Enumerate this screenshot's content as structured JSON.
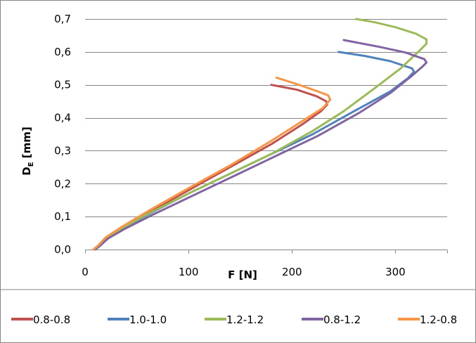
{
  "chart_data": {
    "type": "line",
    "xlabel": "F [N]",
    "ylabel": {
      "main": "D",
      "sub": "E",
      "unit": " [mm]"
    },
    "xlim": [
      0,
      350
    ],
    "ylim": [
      0,
      0.7
    ],
    "x_ticks": [
      {
        "value": 0,
        "label": "0"
      },
      {
        "value": 100,
        "label": "100"
      },
      {
        "value": 200,
        "label": "200"
      },
      {
        "value": 300,
        "label": "300"
      }
    ],
    "y_ticks": [
      {
        "value": 0.0,
        "label": "0,0"
      },
      {
        "value": 0.1,
        "label": "0,1"
      },
      {
        "value": 0.2,
        "label": "0,2"
      },
      {
        "value": 0.3,
        "label": "0,3"
      },
      {
        "value": 0.4,
        "label": "0,4"
      },
      {
        "value": 0.5,
        "label": "0,5"
      },
      {
        "value": 0.6,
        "label": "0,6"
      },
      {
        "value": 0.7,
        "label": "0,7"
      }
    ],
    "grid": "horizontal",
    "legend_position": "bottom",
    "series": [
      {
        "name": "0.8-0.8",
        "color": "#c0504d",
        "points": [
          [
            8,
            0
          ],
          [
            12,
            0.01
          ],
          [
            20,
            0.035
          ],
          [
            35,
            0.065
          ],
          [
            60,
            0.11
          ],
          [
            100,
            0.18
          ],
          [
            140,
            0.25
          ],
          [
            180,
            0.32
          ],
          [
            210,
            0.38
          ],
          [
            228,
            0.42
          ],
          [
            234,
            0.44
          ],
          [
            233,
            0.45
          ],
          [
            224,
            0.465
          ],
          [
            205,
            0.485
          ],
          [
            180,
            0.5
          ]
        ]
      },
      {
        "name": "1.0-1.0",
        "color": "#4f81bd",
        "points": [
          [
            8,
            0
          ],
          [
            12,
            0.01
          ],
          [
            20,
            0.033
          ],
          [
            35,
            0.062
          ],
          [
            60,
            0.105
          ],
          [
            100,
            0.17
          ],
          [
            140,
            0.23
          ],
          [
            180,
            0.29
          ],
          [
            220,
            0.35
          ],
          [
            260,
            0.42
          ],
          [
            295,
            0.48
          ],
          [
            312,
            0.52
          ],
          [
            318,
            0.54
          ],
          [
            316,
            0.55
          ],
          [
            295,
            0.572
          ],
          [
            270,
            0.588
          ],
          [
            245,
            0.6
          ]
        ]
      },
      {
        "name": "1.2-1.2",
        "color": "#9bbb59",
        "points": [
          [
            8,
            0
          ],
          [
            12,
            0.01
          ],
          [
            20,
            0.034
          ],
          [
            35,
            0.063
          ],
          [
            60,
            0.107
          ],
          [
            100,
            0.17
          ],
          [
            140,
            0.23
          ],
          [
            180,
            0.29
          ],
          [
            220,
            0.36
          ],
          [
            250,
            0.42
          ],
          [
            280,
            0.49
          ],
          [
            305,
            0.55
          ],
          [
            322,
            0.6
          ],
          [
            330,
            0.625
          ],
          [
            330,
            0.638
          ],
          [
            320,
            0.655
          ],
          [
            300,
            0.675
          ],
          [
            280,
            0.69
          ],
          [
            262,
            0.7
          ]
        ]
      },
      {
        "name": "0.8-1.2",
        "color": "#8064a2",
        "points": [
          [
            10,
            0
          ],
          [
            14,
            0.01
          ],
          [
            22,
            0.033
          ],
          [
            38,
            0.062
          ],
          [
            65,
            0.105
          ],
          [
            105,
            0.165
          ],
          [
            145,
            0.225
          ],
          [
            185,
            0.285
          ],
          [
            225,
            0.345
          ],
          [
            265,
            0.415
          ],
          [
            295,
            0.475
          ],
          [
            315,
            0.525
          ],
          [
            326,
            0.555
          ],
          [
            330,
            0.568
          ],
          [
            328,
            0.578
          ],
          [
            310,
            0.598
          ],
          [
            285,
            0.615
          ],
          [
            250,
            0.636
          ]
        ]
      },
      {
        "name": "1.2-0.8",
        "color": "#f79646",
        "points": [
          [
            8,
            0
          ],
          [
            12,
            0.01
          ],
          [
            20,
            0.037
          ],
          [
            35,
            0.068
          ],
          [
            60,
            0.115
          ],
          [
            100,
            0.186
          ],
          [
            140,
            0.255
          ],
          [
            180,
            0.33
          ],
          [
            210,
            0.39
          ],
          [
            230,
            0.43
          ],
          [
            237,
            0.455
          ],
          [
            235,
            0.468
          ],
          [
            225,
            0.48
          ],
          [
            205,
            0.502
          ],
          [
            185,
            0.522
          ]
        ]
      }
    ]
  }
}
